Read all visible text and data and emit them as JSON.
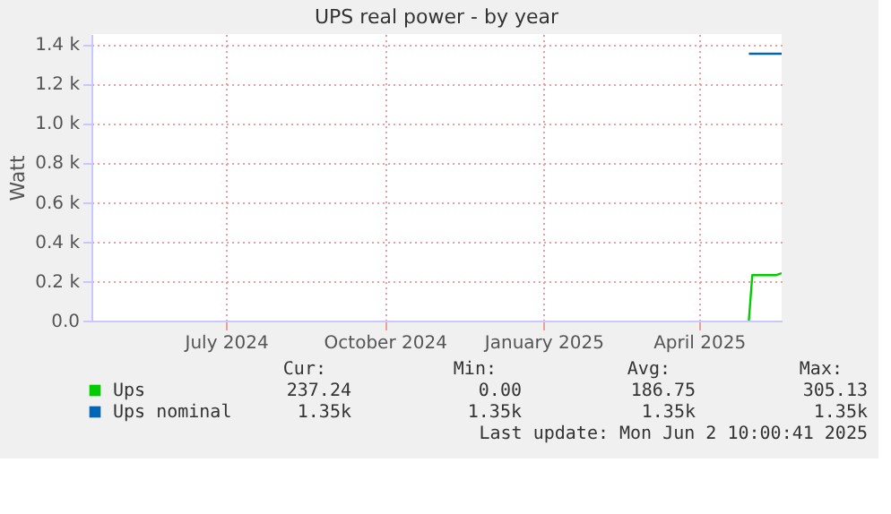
{
  "chart_data": {
    "type": "line",
    "title": "UPS real power - by year",
    "ylabel": "Watt",
    "x": [
      "2025-05-14",
      "2025-05-16",
      "2025-05-20",
      "2025-05-25",
      "2025-05-30",
      "2025-06-02"
    ],
    "series": [
      {
        "name": "Ups",
        "color": "#00cc00",
        "values": [
          0,
          230,
          230,
          230,
          230,
          240
        ]
      },
      {
        "name": "Ups nominal",
        "color": "#0066b3",
        "x": [
          "2025-05-14",
          "2025-06-02"
        ],
        "values": [
          1350,
          1350
        ]
      }
    ],
    "xlim": [
      "2024-04-28",
      "2025-06-02"
    ],
    "xticks": [
      {
        "value": "2024-07-15",
        "label": "July 2024"
      },
      {
        "value": "2024-10-15",
        "label": "October 2024"
      },
      {
        "value": "2025-01-15",
        "label": "January 2025"
      },
      {
        "value": "2025-04-15",
        "label": "April 2025"
      }
    ],
    "ylim": [
      0,
      1450
    ],
    "yticks": [
      {
        "value": 0,
        "label": "0.0"
      },
      {
        "value": 200,
        "label": "0.2 k"
      },
      {
        "value": 400,
        "label": "0.4 k"
      },
      {
        "value": 600,
        "label": "0.6 k"
      },
      {
        "value": 800,
        "label": "0.8 k"
      },
      {
        "value": 1000,
        "label": "1.0 k"
      },
      {
        "value": 1200,
        "label": "1.2 k"
      },
      {
        "value": 1400,
        "label": "1.4 k"
      }
    ],
    "grid": true,
    "legend": "bottom",
    "marker": "none",
    "line_style": "solid",
    "annotations": [
      "Cur:",
      "Min:",
      "Avg:",
      "Max:",
      "237.24",
      "0.00",
      "186.75",
      "305.13",
      "1.35k",
      "1.35k",
      "1.35k",
      "1.35k",
      "Last update: Mon Jun  2 10:00:41 2025"
    ]
  }
}
